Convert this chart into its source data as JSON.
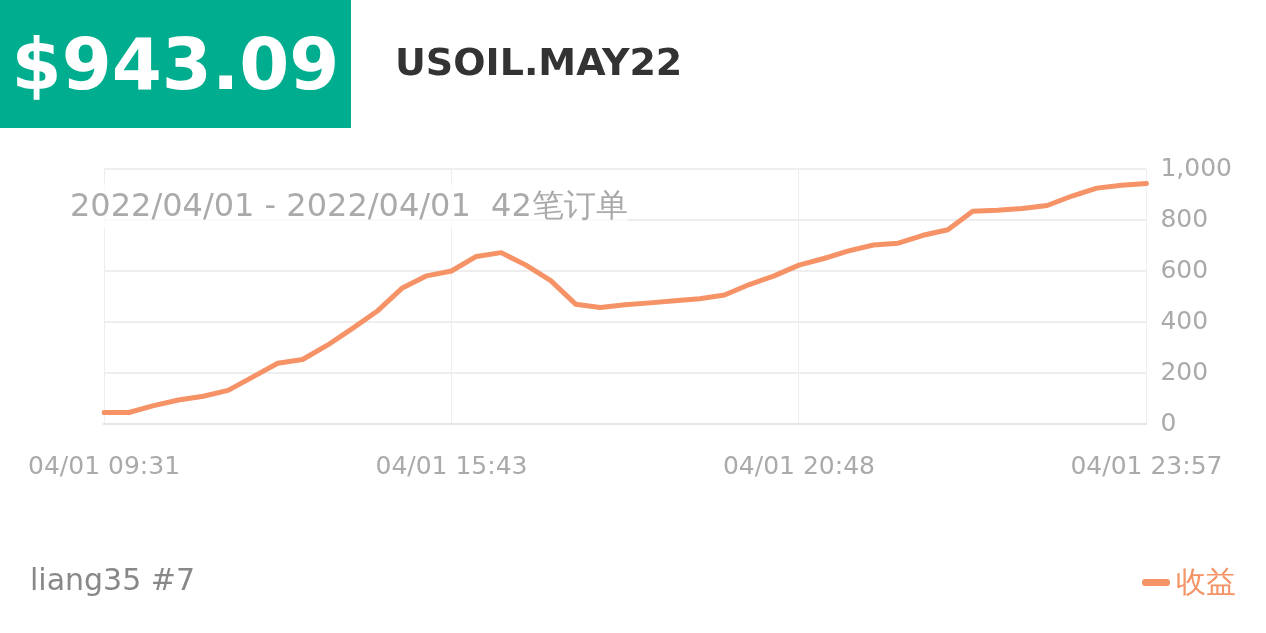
{
  "chart_data": {
    "type": "line",
    "title": "$943.09",
    "subtitle": "USOIL.MAY22",
    "annotations": [
      "2022/04/01 - 2022/04/01  42笔订单",
      "liang35 #7"
    ],
    "categories": [
      "04/01 09:31",
      null,
      null,
      null,
      null,
      null,
      null,
      null,
      null,
      null,
      null,
      null,
      null,
      null,
      "04/01 15:43",
      null,
      null,
      null,
      null,
      null,
      null,
      null,
      null,
      null,
      null,
      null,
      null,
      null,
      "04/01 20:48",
      null,
      null,
      null,
      null,
      null,
      null,
      null,
      null,
      null,
      null,
      null,
      null,
      null,
      "04/01 23:57"
    ],
    "series": [
      {
        "name": "收益",
        "color": "#f59266",
        "values": [
          45,
          45,
          72,
          94,
          109,
          132,
          185,
          238,
          253,
          309,
          374,
          442,
          532,
          581,
          600,
          657,
          672,
          623,
          562,
          470,
          457,
          468,
          475,
          483,
          491,
          506,
          547,
          581,
          623,
          649,
          679,
          702,
          709,
          740,
          762,
          834,
          838,
          845,
          857,
          894,
          925,
          936,
          943
        ]
      }
    ],
    "ylim": [
      0,
      1000
    ],
    "yticks": [
      0,
      200,
      400,
      600,
      800,
      {
        "value": 1000,
        "label": "1,000"
      }
    ],
    "grid": true,
    "legend": "bottom right",
    "marker": "none",
    "line_style": "solid"
  }
}
